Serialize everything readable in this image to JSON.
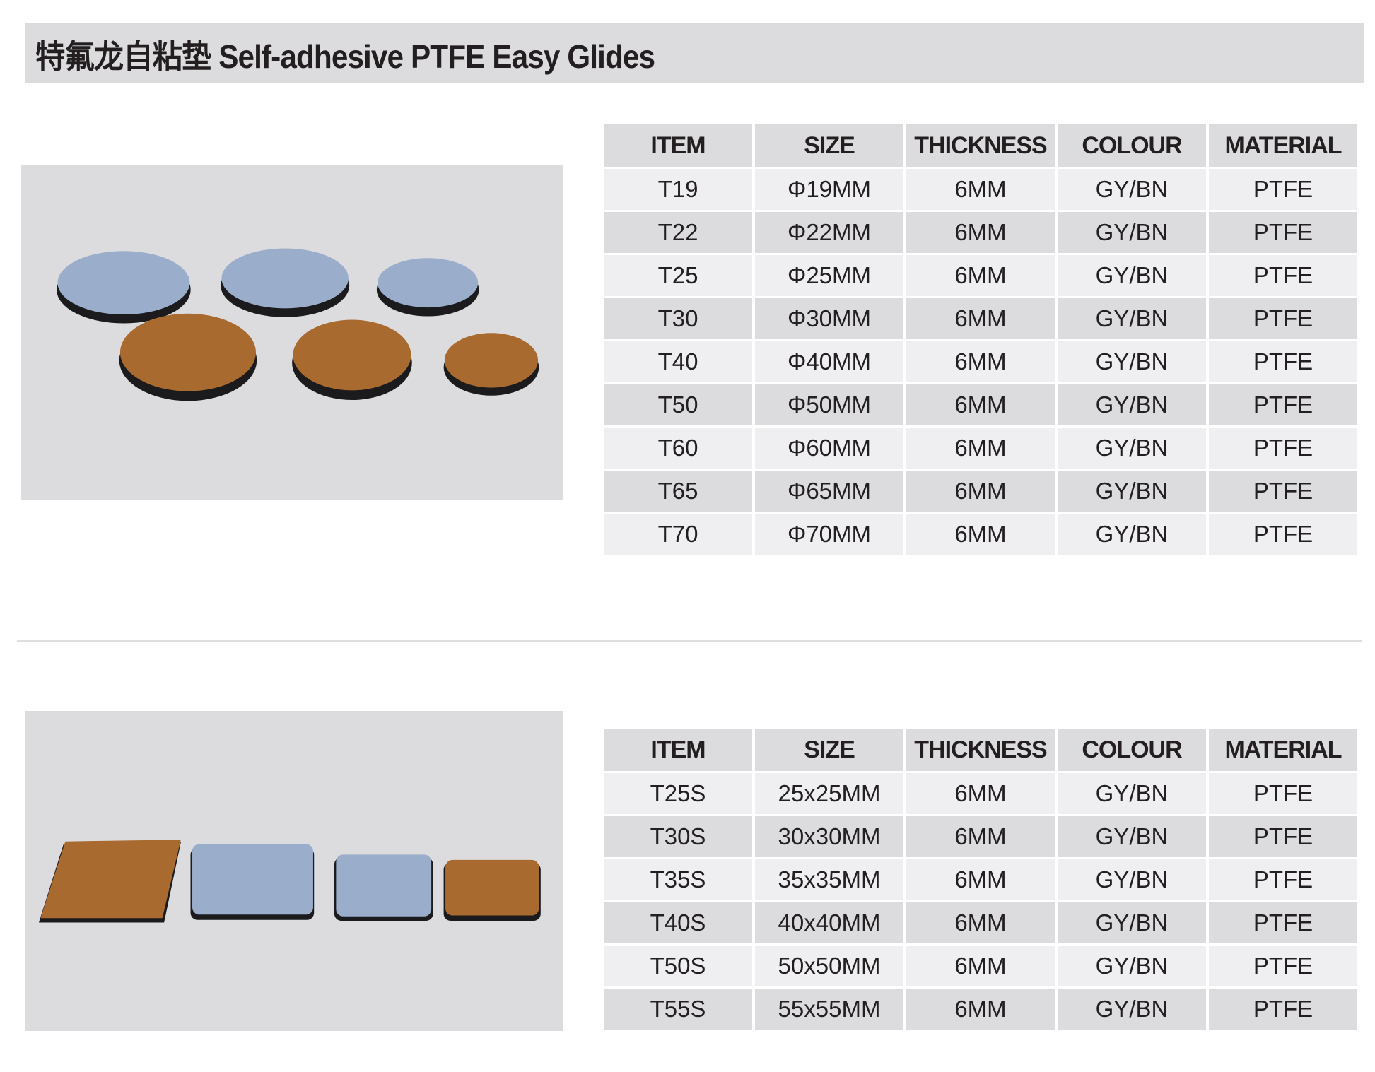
{
  "title": "特氟龙自粘垫 Self-adhesive PTFE Easy Glides",
  "colors": {
    "title_bg": "#dcdcde",
    "row_dark": "#dcdcde",
    "row_light": "#efeff1",
    "glide_grey": "#9aaecb",
    "glide_brown": "#a86a2e"
  },
  "headers": [
    "ITEM",
    "SIZE",
    "THICKNESS",
    "COLOUR",
    "MATERIAL"
  ],
  "round_table": [
    [
      "T19",
      "Φ19MM",
      "6MM",
      "GY/BN",
      "PTFE"
    ],
    [
      "T22",
      "Φ22MM",
      "6MM",
      "GY/BN",
      "PTFE"
    ],
    [
      "T25",
      "Φ25MM",
      "6MM",
      "GY/BN",
      "PTFE"
    ],
    [
      "T30",
      "Φ30MM",
      "6MM",
      "GY/BN",
      "PTFE"
    ],
    [
      "T40",
      "Φ40MM",
      "6MM",
      "GY/BN",
      "PTFE"
    ],
    [
      "T50",
      "Φ50MM",
      "6MM",
      "GY/BN",
      "PTFE"
    ],
    [
      "T60",
      "Φ60MM",
      "6MM",
      "GY/BN",
      "PTFE"
    ],
    [
      "T65",
      "Φ65MM",
      "6MM",
      "GY/BN",
      "PTFE"
    ],
    [
      "T70",
      "Φ70MM",
      "6MM",
      "GY/BN",
      "PTFE"
    ]
  ],
  "square_table": [
    [
      "T25S",
      "25x25MM",
      "6MM",
      "GY/BN",
      "PTFE"
    ],
    [
      "T30S",
      "30x30MM",
      "6MM",
      "GY/BN",
      "PTFE"
    ],
    [
      "T35S",
      "35x35MM",
      "6MM",
      "GY/BN",
      "PTFE"
    ],
    [
      "T40S",
      "40x40MM",
      "6MM",
      "GY/BN",
      "PTFE"
    ],
    [
      "T50S",
      "50x50MM",
      "6MM",
      "GY/BN",
      "PTFE"
    ],
    [
      "T55S",
      "55x55MM",
      "6MM",
      "GY/BN",
      "PTFE"
    ]
  ]
}
